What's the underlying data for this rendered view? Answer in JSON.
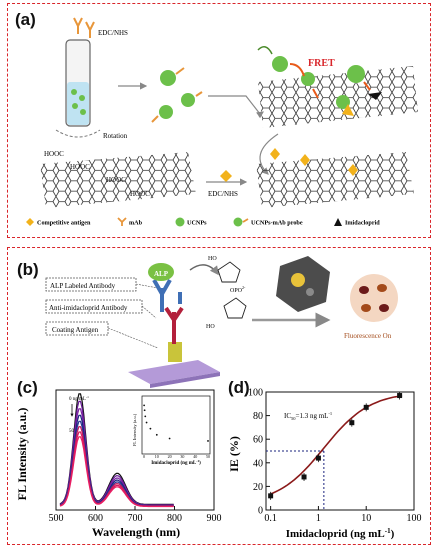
{
  "panel_a": {
    "label": "(a)",
    "reagent": "EDC/NHS",
    "rotation": "Rotation",
    "fret": "FRET",
    "hooc": "HOOC",
    "reagent_lower": "EDC/NHS",
    "legend": [
      {
        "label": "Competitive antigen",
        "icon": "diamond",
        "color": "#f2b21b"
      },
      {
        "label": "mAb",
        "icon": "antibody",
        "color": "#e8963a"
      },
      {
        "label": "UCNPs",
        "icon": "circle",
        "color": "#6cc04a"
      },
      {
        "label": "UCNPs-mAb probe",
        "icon": "probe",
        "color": "#6cc04a"
      },
      {
        "label": "Imidacloprid",
        "icon": "triangle",
        "color": "#111111"
      }
    ]
  },
  "panel_b": {
    "label": "(b)",
    "boxes": [
      "ALP Labeled Antibody",
      "Anti-imidacloprid Antibody",
      "Coating Antigen"
    ],
    "enzyme": "ALP",
    "phosphate": "OPO",
    "phosphate_charge": "2-",
    "hydroxyl": "HO",
    "fluorescence": "Fluorescence On"
  },
  "panel_c": {
    "label": "(c)",
    "chart_data": {
      "type": "line",
      "xlabel": "Wavelength (nm)",
      "ylabel": "FL Intensity (a.u.)",
      "xlim": [
        500,
        900
      ],
      "xticks": [
        "500",
        "600",
        "700",
        "800",
        "900"
      ],
      "annotation": "0 ng mL",
      "annotation_sup": "-1",
      "annotation_end": "50",
      "series_colors": [
        "#111111",
        "#6a1b9a",
        "#7b1fa2",
        "#1a237e",
        "#283593",
        "#c2185b",
        "#d81b60",
        "#e91e63"
      ],
      "series_peaks": [
        390,
        365,
        340,
        318,
        298,
        280,
        262,
        246
      ],
      "inset": {
        "type": "scatter",
        "xlabel": "Imidacloprid (ng mL",
        "xlabel_sup": "-1",
        "xlabel_end": ")",
        "ylabel": "FL Intensity (a.u.)",
        "xticks": [
          "0",
          "10",
          "20",
          "30",
          "40",
          "50"
        ],
        "points": [
          {
            "x": 0.1,
            "y": 390
          },
          {
            "x": 0.5,
            "y": 370
          },
          {
            "x": 1,
            "y": 345
          },
          {
            "x": 2,
            "y": 320
          },
          {
            "x": 5,
            "y": 295
          },
          {
            "x": 10,
            "y": 270
          },
          {
            "x": 20,
            "y": 255
          },
          {
            "x": 50,
            "y": 245
          }
        ]
      }
    }
  },
  "panel_d": {
    "label": "(d)",
    "chart_data": {
      "type": "scatter",
      "xlabel": "Imidacloprid (ng mL",
      "xlabel_sup": "-1",
      "xlabel_end": ")",
      "ylabel": "IE (%)",
      "xscale": "log",
      "xlim": [
        0.08,
        100
      ],
      "ylim": [
        0,
        100
      ],
      "xticks": [
        "0.1",
        "1",
        "10",
        "100"
      ],
      "yticks": [
        "0",
        "20",
        "40",
        "60",
        "80",
        "100"
      ],
      "annotation": "IC",
      "annotation_sub": "50",
      "annotation_rest": "=1.3 ng mL",
      "annotation_sup": "-1",
      "points": [
        {
          "x": 0.1,
          "y": 12
        },
        {
          "x": 0.5,
          "y": 28
        },
        {
          "x": 1,
          "y": 44
        },
        {
          "x": 5,
          "y": 74
        },
        {
          "x": 10,
          "y": 87
        },
        {
          "x": 50,
          "y": 97
        }
      ],
      "fit_color": "#8b1a1a",
      "point_color": "#111111"
    }
  }
}
